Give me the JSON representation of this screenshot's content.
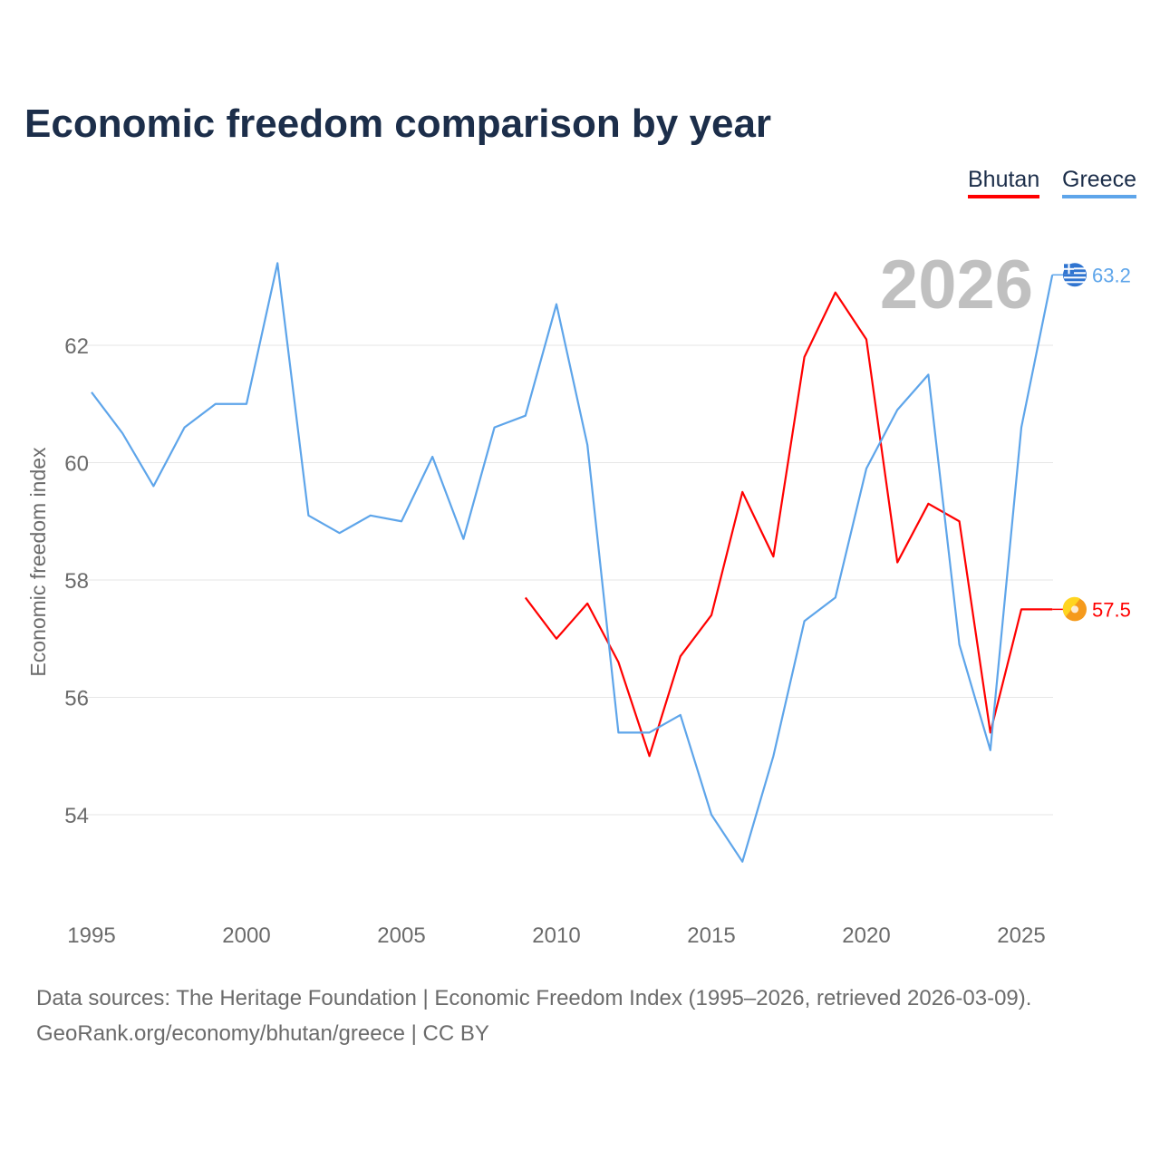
{
  "title": "Economic freedom comparison by year",
  "footer": {
    "line1": "Data sources: The Heritage Foundation | Economic Freedom Index (1995–2026, retrieved 2026-03-09).",
    "line2": "GeoRank.org/economy/bhutan/greece | CC BY"
  },
  "chart_data": {
    "type": "line",
    "title": "Economic freedom comparison by year",
    "xlabel": "",
    "ylabel": "Economic freedom index",
    "year_label": "2026",
    "xlim": [
      1995,
      2026
    ],
    "ylim": [
      52.5,
      63.8
    ],
    "xticks": [
      1995,
      2000,
      2005,
      2010,
      2015,
      2020,
      2025
    ],
    "yticks": [
      54,
      56,
      58,
      60,
      62
    ],
    "grid": true,
    "legend_position": "top-right",
    "series": [
      {
        "name": "Bhutan",
        "color": "#ff0000",
        "end_label": "57.5",
        "flag": "bhutan-flag",
        "x": [
          2009,
          2010,
          2011,
          2012,
          2013,
          2014,
          2015,
          2016,
          2017,
          2018,
          2019,
          2020,
          2021,
          2022,
          2023,
          2024,
          2025,
          2026
        ],
        "values": [
          57.7,
          57.0,
          57.6,
          56.6,
          55.0,
          56.7,
          57.4,
          59.5,
          58.4,
          61.8,
          62.9,
          62.1,
          58.3,
          59.3,
          59.0,
          55.4,
          57.5,
          57.5
        ]
      },
      {
        "name": "Greece",
        "color": "#5ea5ea",
        "end_label": "63.2",
        "flag": "greece-flag",
        "x": [
          1995,
          1996,
          1997,
          1998,
          1999,
          2000,
          2001,
          2002,
          2003,
          2004,
          2005,
          2006,
          2007,
          2008,
          2009,
          2010,
          2011,
          2012,
          2013,
          2014,
          2015,
          2016,
          2017,
          2018,
          2019,
          2020,
          2021,
          2022,
          2023,
          2024,
          2025,
          2026
        ],
        "values": [
          61.2,
          60.5,
          59.6,
          60.6,
          61.0,
          61.0,
          63.4,
          59.1,
          58.8,
          59.1,
          59.0,
          60.1,
          58.7,
          60.6,
          60.8,
          62.7,
          60.3,
          55.4,
          55.4,
          55.7,
          54.0,
          53.2,
          55.0,
          57.3,
          57.7,
          59.9,
          60.9,
          61.5,
          56.9,
          55.1,
          60.6,
          63.2
        ]
      }
    ]
  }
}
